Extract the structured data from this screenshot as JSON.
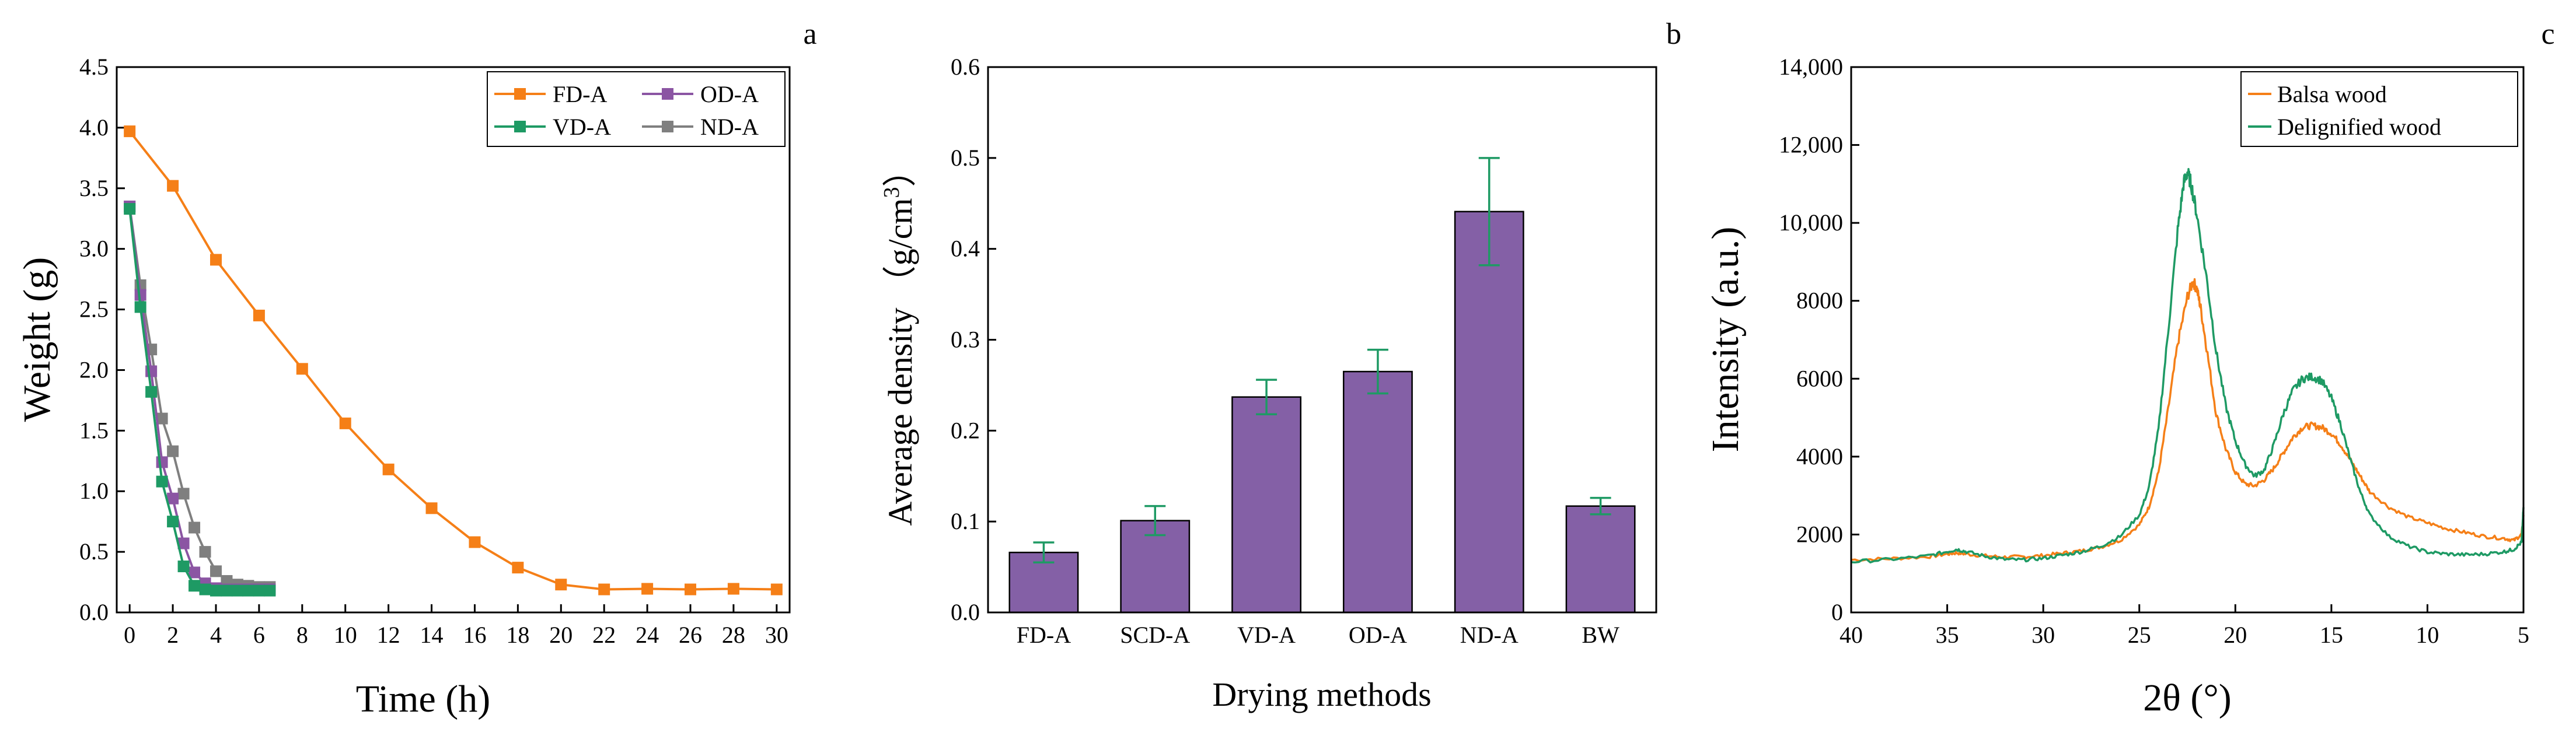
{
  "figure_labels": {
    "a": "a",
    "b": "b",
    "c": "c"
  },
  "chart_data": [
    {
      "type": "line",
      "panel": "a",
      "title": "",
      "xlabel": "Time (h)",
      "ylabel": "Weight (g)",
      "xlim": [
        -0.6,
        30.6
      ],
      "ylim": [
        0,
        4.5
      ],
      "xticks": [
        0,
        2,
        4,
        6,
        8,
        10,
        12,
        14,
        16,
        18,
        20,
        22,
        24,
        26,
        28,
        30
      ],
      "xtick_labels": [
        "0",
        "2",
        "4",
        "6",
        "8",
        "10",
        "12",
        "14",
        "16",
        "18",
        "20",
        "22",
        "24",
        "26",
        "28",
        "30"
      ],
      "yticks": [
        0,
        0.5,
        1.0,
        1.5,
        2.0,
        2.5,
        3.0,
        3.5,
        4.0,
        4.5
      ],
      "ytick_labels": [
        "0.0",
        "0.5",
        "1.0",
        "1.5",
        "2.0",
        "2.5",
        "3.0",
        "3.5",
        "4.0",
        "4.5"
      ],
      "legend_position": "top-right",
      "series": [
        {
          "name": "FD-A",
          "color": "#F57F17",
          "marker": "square",
          "x": [
            0,
            2,
            4,
            6,
            8,
            10,
            12,
            14,
            16,
            18,
            20,
            22,
            24,
            26,
            28,
            30
          ],
          "y": [
            3.97,
            3.52,
            2.91,
            2.45,
            2.01,
            1.56,
            1.18,
            0.86,
            0.58,
            0.37,
            0.23,
            0.19,
            0.195,
            0.19,
            0.195,
            0.19
          ]
        },
        {
          "name": "VD-A",
          "color": "#1E9A64",
          "marker": "square",
          "x": [
            0,
            0.5,
            1,
            1.5,
            2,
            2.5,
            3,
            3.5,
            4,
            4.5,
            5,
            5.5,
            6,
            6.5
          ],
          "y": [
            3.33,
            2.52,
            1.82,
            1.08,
            0.75,
            0.38,
            0.22,
            0.19,
            0.18,
            0.18,
            0.18,
            0.18,
            0.18,
            0.18
          ]
        },
        {
          "name": "OD-A",
          "color": "#8B55A3",
          "marker": "square",
          "x": [
            0,
            0.5,
            1,
            1.5,
            2,
            2.5,
            3,
            3.5,
            4,
            4.5,
            5,
            5.5,
            6,
            6.5
          ],
          "y": [
            3.35,
            2.62,
            1.99,
            1.24,
            0.94,
            0.57,
            0.33,
            0.24,
            0.2,
            0.19,
            0.19,
            0.19,
            0.19,
            0.19
          ]
        },
        {
          "name": "ND-A",
          "color": "#7F7F7F",
          "marker": "square",
          "x": [
            0,
            0.5,
            1,
            1.5,
            2,
            2.5,
            3,
            3.5,
            4,
            4.5,
            5,
            5.5,
            6,
            6.5
          ],
          "y": [
            3.35,
            2.7,
            2.17,
            1.6,
            1.33,
            0.98,
            0.7,
            0.5,
            0.34,
            0.26,
            0.23,
            0.22,
            0.21,
            0.21
          ]
        }
      ]
    },
    {
      "type": "bar",
      "panel": "b",
      "title": "",
      "xlabel": "Drying methods",
      "ylabel": "Average density",
      "ylabel_unit_open": "（g/cm",
      "ylabel_unit_exp": "3",
      "ylabel_unit_close": "）",
      "ylim": [
        0,
        0.6
      ],
      "yticks": [
        0,
        0.1,
        0.2,
        0.3,
        0.4,
        0.5,
        0.6
      ],
      "ytick_labels": [
        "0.0",
        "0.1",
        "0.2",
        "0.3",
        "0.4",
        "0.5",
        "0.6"
      ],
      "bar_color": "#8460A6",
      "error_color": "#1E9A64",
      "categories": [
        "FD-A",
        "SCD-A",
        "VD-A",
        "OD-A",
        "ND-A",
        "BW"
      ],
      "values": [
        0.066,
        0.101,
        0.237,
        0.265,
        0.441,
        0.117
      ],
      "errors": [
        0.011,
        0.016,
        0.019,
        0.024,
        0.059,
        0.009
      ]
    },
    {
      "type": "line",
      "panel": "c",
      "title": "",
      "xlabel": "2θ (°)",
      "ylabel": "Intensity (a.u.)",
      "xlim": [
        40,
        5
      ],
      "ylim": [
        0,
        14000
      ],
      "xticks": [
        40,
        35,
        30,
        25,
        20,
        15,
        10,
        5
      ],
      "xtick_labels": [
        "40",
        "35",
        "30",
        "25",
        "20",
        "15",
        "10",
        "5"
      ],
      "yticks": [
        0,
        2000,
        4000,
        6000,
        8000,
        10000,
        12000,
        14000
      ],
      "ytick_labels": [
        "0",
        "2000",
        "4000",
        "6000",
        "8000",
        "10,000",
        "12,000",
        "14,000"
      ],
      "legend_position": "top-right",
      "series": [
        {
          "name": "Balsa wood",
          "color": "#F57F17",
          "x": [
            40,
            38,
            36,
            35,
            34.5,
            34,
            33,
            32,
            31,
            30,
            29,
            28,
            27,
            26,
            25,
            24.5,
            24,
            23.5,
            23,
            22.5,
            22.2,
            22,
            21.8,
            21.5,
            21,
            20.5,
            20,
            19.5,
            19,
            18.5,
            18,
            17.5,
            17,
            16.5,
            16,
            15.5,
            15,
            14.5,
            14,
            13.5,
            13,
            12,
            11,
            10,
            9,
            8,
            7,
            6,
            5.5,
            5.1,
            5
          ],
          "y": [
            1350,
            1380,
            1430,
            1500,
            1530,
            1500,
            1450,
            1420,
            1430,
            1460,
            1520,
            1580,
            1680,
            1850,
            2250,
            2700,
            3600,
            5200,
            6900,
            8100,
            8500,
            8300,
            7800,
            6800,
            5100,
            4200,
            3600,
            3300,
            3250,
            3400,
            3700,
            4100,
            4500,
            4750,
            4800,
            4750,
            4600,
            4300,
            3900,
            3500,
            3100,
            2700,
            2450,
            2300,
            2150,
            2050,
            1950,
            1900,
            1850,
            2000,
            2500
          ]
        },
        {
          "name": "Delignified wood",
          "color": "#1E9A64",
          "x": [
            40,
            38,
            36,
            35,
            34.5,
            34,
            33,
            32,
            31,
            30,
            29,
            28,
            27,
            26,
            25,
            24.5,
            24,
            23.5,
            23,
            22.7,
            22.5,
            22.3,
            22,
            21.5,
            21,
            20.5,
            20,
            19.5,
            19,
            18.5,
            18,
            17.5,
            17,
            16.5,
            16,
            15.5,
            15,
            14.5,
            14,
            13.5,
            13,
            12,
            11,
            10,
            9,
            8,
            7,
            6,
            5.5,
            5.1,
            5
          ],
          "y": [
            1300,
            1360,
            1450,
            1560,
            1620,
            1560,
            1440,
            1360,
            1350,
            1390,
            1470,
            1560,
            1700,
            1950,
            2500,
            3200,
            4700,
            7200,
            9800,
            11000,
            11300,
            11000,
            10200,
            8600,
            6700,
            5300,
            4400,
            3800,
            3500,
            3650,
            4300,
            5100,
            5700,
            6000,
            6050,
            5950,
            5500,
            4800,
            3900,
            3100,
            2500,
            1950,
            1700,
            1550,
            1500,
            1480,
            1500,
            1560,
            1620,
            1800,
            2700
          ]
        }
      ]
    }
  ]
}
